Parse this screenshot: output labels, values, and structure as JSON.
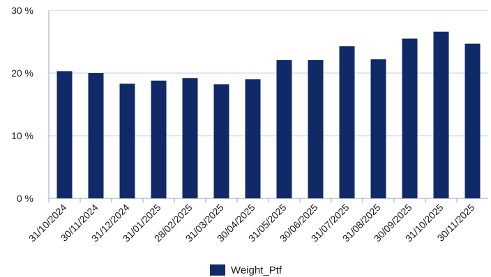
{
  "chart_data": {
    "type": "bar",
    "categories": [
      "31/10/2024",
      "30/11/2024",
      "31/12/2024",
      "31/01/2025",
      "28/02/2025",
      "31/03/2025",
      "30/04/2025",
      "31/05/2025",
      "30/06/2025",
      "31/07/2025",
      "31/08/2025",
      "30/09/2025",
      "31/10/2025",
      "30/11/2025"
    ],
    "series": [
      {
        "name": "Weight_Ptf",
        "values": [
          20.3,
          20.0,
          18.3,
          18.8,
          19.2,
          18.2,
          19.0,
          22.1,
          22.1,
          24.3,
          22.2,
          25.5,
          26.6,
          24.7
        ]
      }
    ],
    "yticks": [
      "0 %",
      "10 %",
      "20 %",
      "30 %"
    ],
    "ylim": [
      0,
      30
    ],
    "grid": true,
    "legend_position": "bottom",
    "colors": {
      "bar": "#0f2a66",
      "grid": "#c7cfdd",
      "axis": "#9aa3b5"
    }
  }
}
